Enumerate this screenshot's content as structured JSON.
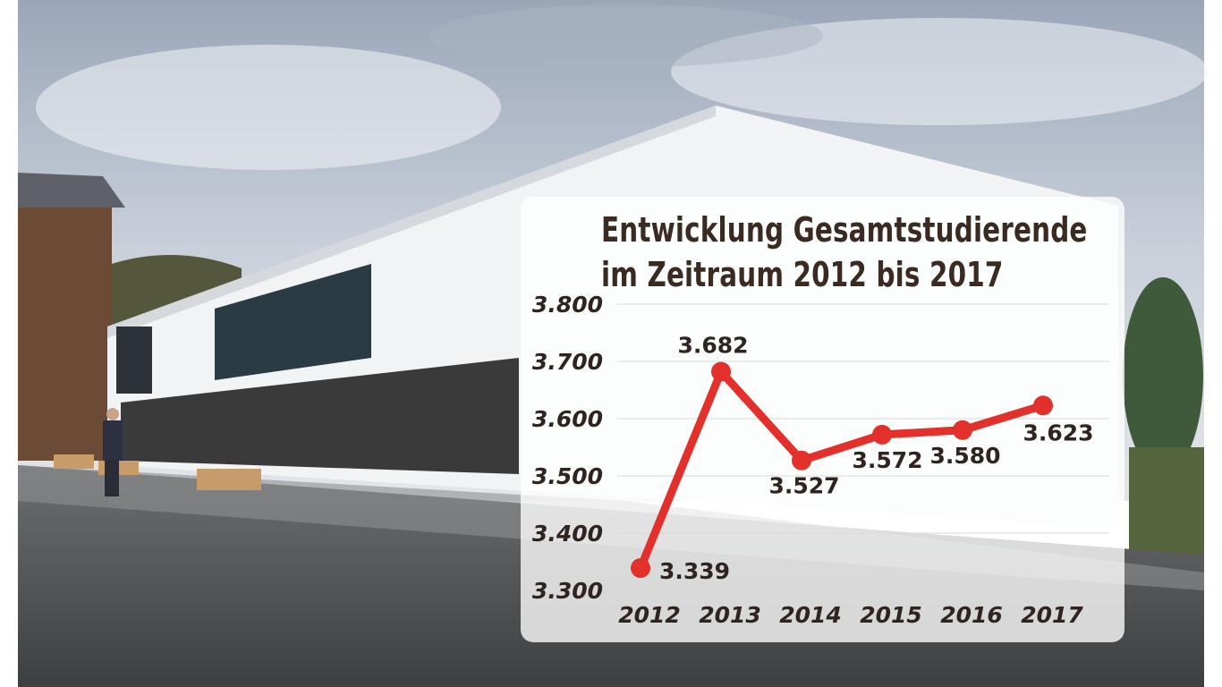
{
  "chart_data": {
    "type": "line",
    "title_lines": [
      "Entwicklung Gesamtstudierende",
      "im Zeitraum 2012 bis 2017"
    ],
    "categories": [
      "2012",
      "2013",
      "2014",
      "2015",
      "2016",
      "2017"
    ],
    "values": [
      3339,
      3682,
      3527,
      3572,
      3580,
      3623
    ],
    "data_labels": [
      "3.339",
      "3.682",
      "3.527",
      "3.572",
      "3.580",
      "3.623"
    ],
    "y_ticks": [
      3300,
      3400,
      3500,
      3600,
      3700,
      3800
    ],
    "y_tick_labels": [
      "3.300",
      "3.400",
      "3.500",
      "3.600",
      "3.700",
      "3.800"
    ],
    "ylim": [
      3300,
      3800
    ],
    "grid": true,
    "line_color": "#e3302b",
    "panel_color": "#ffffff"
  }
}
